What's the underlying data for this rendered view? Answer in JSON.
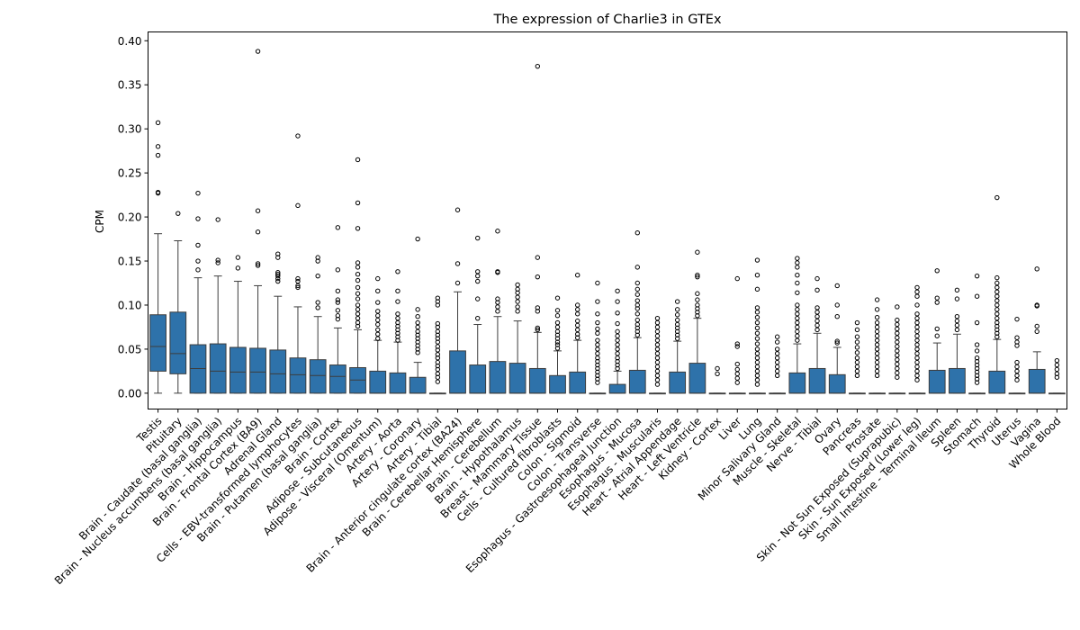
{
  "chart_data": {
    "type": "box",
    "title": "The expression of Charlie3 in GTEx",
    "xlabel": "",
    "ylabel": "CPM",
    "ylim": [
      -0.018,
      0.41
    ],
    "yticks": [
      0.0,
      0.05,
      0.1,
      0.15,
      0.2,
      0.25,
      0.3,
      0.35,
      0.4
    ],
    "ytick_labels": [
      "0.00",
      "0.05",
      "0.10",
      "0.15",
      "0.20",
      "0.25",
      "0.30",
      "0.35",
      "0.40"
    ],
    "box_color": "#2e72aa",
    "grid": false,
    "categories": [
      {
        "name": "Testis",
        "q1": 0.025,
        "median": 0.053,
        "q3": 0.089,
        "whisker_low": 0.0,
        "whisker_high": 0.181,
        "outliers": [
          0.227,
          0.228,
          0.27,
          0.28,
          0.307
        ]
      },
      {
        "name": "Pituitary",
        "q1": 0.022,
        "median": 0.045,
        "q3": 0.092,
        "whisker_low": 0.0,
        "whisker_high": 0.173,
        "outliers": [
          0.204
        ]
      },
      {
        "name": "Brain - Caudate (basal ganglia)",
        "q1": 0.0,
        "median": 0.028,
        "q3": 0.055,
        "whisker_low": 0.0,
        "whisker_high": 0.131,
        "outliers": [
          0.14,
          0.15,
          0.168,
          0.198,
          0.227
        ]
      },
      {
        "name": "Brain - Nucleus accumbens (basal ganglia)",
        "q1": 0.0,
        "median": 0.025,
        "q3": 0.056,
        "whisker_low": 0.0,
        "whisker_high": 0.133,
        "outliers": [
          0.148,
          0.151,
          0.197
        ]
      },
      {
        "name": "Brain - Hippocampus",
        "q1": 0.0,
        "median": 0.024,
        "q3": 0.052,
        "whisker_low": 0.0,
        "whisker_high": 0.127,
        "outliers": [
          0.142,
          0.154
        ]
      },
      {
        "name": "Brain - Frontal Cortex (BA9)",
        "q1": 0.0,
        "median": 0.024,
        "q3": 0.051,
        "whisker_low": 0.0,
        "whisker_high": 0.122,
        "outliers": [
          0.145,
          0.147,
          0.183,
          0.207,
          0.388
        ]
      },
      {
        "name": "Adrenal Gland",
        "q1": 0.0,
        "median": 0.022,
        "q3": 0.049,
        "whisker_low": 0.0,
        "whisker_high": 0.11,
        "outliers": [
          0.127,
          0.13,
          0.133,
          0.135,
          0.137,
          0.154,
          0.158
        ]
      },
      {
        "name": "Cells - EBV-transformed lymphocytes",
        "q1": 0.0,
        "median": 0.021,
        "q3": 0.04,
        "whisker_low": 0.0,
        "whisker_high": 0.098,
        "outliers": [
          0.12,
          0.122,
          0.127,
          0.13,
          0.213,
          0.292
        ]
      },
      {
        "name": "Brain - Putamen (basal ganglia)",
        "q1": 0.0,
        "median": 0.02,
        "q3": 0.038,
        "whisker_low": 0.0,
        "whisker_high": 0.087,
        "outliers": [
          0.097,
          0.103,
          0.133,
          0.15,
          0.154
        ]
      },
      {
        "name": "Brain - Cortex",
        "q1": 0.0,
        "median": 0.019,
        "q3": 0.032,
        "whisker_low": 0.0,
        "whisker_high": 0.074,
        "outliers": [
          0.084,
          0.088,
          0.094,
          0.103,
          0.106,
          0.116,
          0.14,
          0.188
        ]
      },
      {
        "name": "Adipose - Subcutaneous",
        "q1": 0.0,
        "median": 0.015,
        "q3": 0.029,
        "whisker_low": 0.0,
        "whisker_high": 0.072,
        "outliers": [
          0.076,
          0.08,
          0.085,
          0.09,
          0.095,
          0.1,
          0.107,
          0.113,
          0.12,
          0.128,
          0.135,
          0.143,
          0.148,
          0.187,
          0.216,
          0.265
        ]
      },
      {
        "name": "Adipose - Visceral (Omentum)",
        "q1": 0.0,
        "median": 0.0,
        "q3": 0.025,
        "whisker_low": 0.0,
        "whisker_high": 0.06,
        "outliers": [
          0.062,
          0.067,
          0.072,
          0.078,
          0.083,
          0.088,
          0.093,
          0.103,
          0.116,
          0.13
        ]
      },
      {
        "name": "Artery - Aorta",
        "q1": 0.0,
        "median": 0.0,
        "q3": 0.023,
        "whisker_low": 0.0,
        "whisker_high": 0.058,
        "outliers": [
          0.06,
          0.064,
          0.068,
          0.072,
          0.076,
          0.08,
          0.085,
          0.09,
          0.104,
          0.116,
          0.138
        ]
      },
      {
        "name": "Artery - Coronary",
        "q1": 0.0,
        "median": 0.0,
        "q3": 0.018,
        "whisker_low": 0.0,
        "whisker_high": 0.035,
        "outliers": [
          0.046,
          0.05,
          0.054,
          0.058,
          0.062,
          0.066,
          0.07,
          0.075,
          0.08,
          0.087,
          0.095,
          0.175
        ]
      },
      {
        "name": "Artery - Tibial",
        "q1": 0.0,
        "median": 0.0,
        "q3": 0.0,
        "whisker_low": 0.0,
        "whisker_high": 0.0,
        "outliers": [
          0.013,
          0.018,
          0.022,
          0.027,
          0.031,
          0.035,
          0.04,
          0.044,
          0.049,
          0.053,
          0.058,
          0.062,
          0.066,
          0.07,
          0.075,
          0.079,
          0.1,
          0.104,
          0.108
        ]
      },
      {
        "name": "Brain - Anterior cingulate cortex (BA24)",
        "q1": 0.0,
        "median": 0.0,
        "q3": 0.048,
        "whisker_low": 0.0,
        "whisker_high": 0.115,
        "outliers": [
          0.125,
          0.147,
          0.208
        ]
      },
      {
        "name": "Brain - Cerebellar Hemisphere",
        "q1": 0.0,
        "median": 0.0,
        "q3": 0.032,
        "whisker_low": 0.0,
        "whisker_high": 0.078,
        "outliers": [
          0.085,
          0.107,
          0.127,
          0.133,
          0.138,
          0.176
        ]
      },
      {
        "name": "Brain - Cerebellum",
        "q1": 0.0,
        "median": 0.0,
        "q3": 0.036,
        "whisker_low": 0.0,
        "whisker_high": 0.087,
        "outliers": [
          0.093,
          0.098,
          0.103,
          0.107,
          0.137,
          0.138,
          0.184
        ]
      },
      {
        "name": "Brain - Hypothalamus",
        "q1": 0.0,
        "median": 0.0,
        "q3": 0.034,
        "whisker_low": 0.0,
        "whisker_high": 0.082,
        "outliers": [
          0.093,
          0.098,
          0.104,
          0.109,
          0.114,
          0.118,
          0.123
        ]
      },
      {
        "name": "Breast - Mammary Tissue",
        "q1": 0.0,
        "median": 0.0,
        "q3": 0.028,
        "whisker_low": 0.0,
        "whisker_high": 0.069,
        "outliers": [
          0.072,
          0.074,
          0.093,
          0.097,
          0.132,
          0.154,
          0.371
        ]
      },
      {
        "name": "Cells - Cultured fibroblasts",
        "q1": 0.0,
        "median": 0.0,
        "q3": 0.02,
        "whisker_low": 0.0,
        "whisker_high": 0.048,
        "outliers": [
          0.051,
          0.055,
          0.058,
          0.062,
          0.066,
          0.07,
          0.075,
          0.08,
          0.088,
          0.094,
          0.108
        ]
      },
      {
        "name": "Colon - Sigmoid",
        "q1": 0.0,
        "median": 0.0,
        "q3": 0.024,
        "whisker_low": 0.0,
        "whisker_high": 0.06,
        "outliers": [
          0.063,
          0.067,
          0.072,
          0.077,
          0.082,
          0.09,
          0.095,
          0.1,
          0.134
        ]
      },
      {
        "name": "Colon - Transverse",
        "q1": 0.0,
        "median": 0.0,
        "q3": 0.0,
        "whisker_low": 0.0,
        "whisker_high": 0.0,
        "outliers": [
          0.012,
          0.016,
          0.02,
          0.024,
          0.028,
          0.032,
          0.036,
          0.04,
          0.045,
          0.05,
          0.055,
          0.06,
          0.068,
          0.073,
          0.08,
          0.09,
          0.104,
          0.125
        ]
      },
      {
        "name": "Esophagus - Gastroesophageal Junction",
        "q1": 0.0,
        "median": 0.0,
        "q3": 0.01,
        "whisker_low": 0.0,
        "whisker_high": 0.025,
        "outliers": [
          0.028,
          0.032,
          0.036,
          0.04,
          0.045,
          0.05,
          0.055,
          0.06,
          0.065,
          0.07,
          0.079,
          0.091,
          0.104,
          0.116
        ]
      },
      {
        "name": "Esophagus - Mucosa",
        "q1": 0.0,
        "median": 0.0,
        "q3": 0.026,
        "whisker_low": 0.0,
        "whisker_high": 0.063,
        "outliers": [
          0.066,
          0.07,
          0.074,
          0.078,
          0.083,
          0.09,
          0.096,
          0.1,
          0.105,
          0.112,
          0.118,
          0.125,
          0.143,
          0.182
        ]
      },
      {
        "name": "Esophagus - Muscularis",
        "q1": 0.0,
        "median": 0.0,
        "q3": 0.0,
        "whisker_low": 0.0,
        "whisker_high": 0.0,
        "outliers": [
          0.01,
          0.015,
          0.02,
          0.025,
          0.03,
          0.035,
          0.04,
          0.045,
          0.05,
          0.055,
          0.06,
          0.065,
          0.07,
          0.075,
          0.08,
          0.085
        ]
      },
      {
        "name": "Heart - Atrial Appendage",
        "q1": 0.0,
        "median": 0.0,
        "q3": 0.024,
        "whisker_low": 0.0,
        "whisker_high": 0.059,
        "outliers": [
          0.062,
          0.066,
          0.07,
          0.074,
          0.078,
          0.083,
          0.089,
          0.095,
          0.104
        ]
      },
      {
        "name": "Heart - Left Ventricle",
        "q1": 0.0,
        "median": 0.0,
        "q3": 0.034,
        "whisker_low": 0.0,
        "whisker_high": 0.085,
        "outliers": [
          0.088,
          0.092,
          0.096,
          0.1,
          0.106,
          0.113,
          0.132,
          0.134,
          0.16
        ]
      },
      {
        "name": "Kidney - Cortex",
        "q1": 0.0,
        "median": 0.0,
        "q3": 0.0,
        "whisker_low": 0.0,
        "whisker_high": 0.0,
        "outliers": [
          0.022,
          0.028
        ]
      },
      {
        "name": "Liver",
        "q1": 0.0,
        "median": 0.0,
        "q3": 0.0,
        "whisker_low": 0.0,
        "whisker_high": 0.0,
        "outliers": [
          0.012,
          0.017,
          0.022,
          0.027,
          0.033,
          0.053,
          0.056,
          0.13
        ]
      },
      {
        "name": "Lung",
        "q1": 0.0,
        "median": 0.0,
        "q3": 0.0,
        "whisker_low": 0.0,
        "whisker_high": 0.0,
        "outliers": [
          0.01,
          0.015,
          0.02,
          0.025,
          0.03,
          0.035,
          0.04,
          0.045,
          0.05,
          0.056,
          0.062,
          0.068,
          0.074,
          0.08,
          0.086,
          0.092,
          0.097,
          0.118,
          0.134,
          0.151
        ]
      },
      {
        "name": "Minor Salivary Gland",
        "q1": 0.0,
        "median": 0.0,
        "q3": 0.0,
        "whisker_low": 0.0,
        "whisker_high": 0.0,
        "outliers": [
          0.02,
          0.025,
          0.03,
          0.035,
          0.04,
          0.045,
          0.05,
          0.058,
          0.064
        ]
      },
      {
        "name": "Muscle - Skeletal",
        "q1": 0.0,
        "median": 0.0,
        "q3": 0.023,
        "whisker_low": 0.0,
        "whisker_high": 0.056,
        "outliers": [
          0.06,
          0.065,
          0.07,
          0.075,
          0.08,
          0.085,
          0.09,
          0.095,
          0.1,
          0.114,
          0.125,
          0.134,
          0.143,
          0.148,
          0.153
        ]
      },
      {
        "name": "Nerve - Tibial",
        "q1": 0.0,
        "median": 0.0,
        "q3": 0.028,
        "whisker_low": 0.0,
        "whisker_high": 0.068,
        "outliers": [
          0.072,
          0.077,
          0.082,
          0.087,
          0.092,
          0.097,
          0.117,
          0.13
        ]
      },
      {
        "name": "Ovary",
        "q1": 0.0,
        "median": 0.0,
        "q3": 0.021,
        "whisker_low": 0.0,
        "whisker_high": 0.052,
        "outliers": [
          0.057,
          0.059,
          0.087,
          0.1,
          0.122
        ]
      },
      {
        "name": "Pancreas",
        "q1": 0.0,
        "median": 0.0,
        "q3": 0.0,
        "whisker_low": 0.0,
        "whisker_high": 0.0,
        "outliers": [
          0.02,
          0.025,
          0.03,
          0.035,
          0.04,
          0.046,
          0.052,
          0.058,
          0.064,
          0.072,
          0.08
        ]
      },
      {
        "name": "Prostate",
        "q1": 0.0,
        "median": 0.0,
        "q3": 0.0,
        "whisker_low": 0.0,
        "whisker_high": 0.0,
        "outliers": [
          0.02,
          0.025,
          0.03,
          0.035,
          0.04,
          0.045,
          0.05,
          0.055,
          0.06,
          0.065,
          0.07,
          0.075,
          0.08,
          0.086,
          0.095,
          0.106
        ]
      },
      {
        "name": "Skin - Not Sun Exposed (Suprapubic)",
        "q1": 0.0,
        "median": 0.0,
        "q3": 0.0,
        "whisker_low": 0.0,
        "whisker_high": 0.0,
        "outliers": [
          0.018,
          0.023,
          0.028,
          0.033,
          0.038,
          0.043,
          0.048,
          0.053,
          0.058,
          0.063,
          0.068,
          0.073,
          0.078,
          0.083,
          0.098
        ]
      },
      {
        "name": "Skin - Sun Exposed (Lower leg)",
        "q1": 0.0,
        "median": 0.0,
        "q3": 0.0,
        "whisker_low": 0.0,
        "whisker_high": 0.0,
        "outliers": [
          0.015,
          0.02,
          0.025,
          0.03,
          0.035,
          0.04,
          0.045,
          0.05,
          0.055,
          0.06,
          0.065,
          0.07,
          0.075,
          0.08,
          0.085,
          0.09,
          0.1,
          0.11,
          0.115,
          0.12
        ]
      },
      {
        "name": "Small Intestine - Terminal Ileum",
        "q1": 0.0,
        "median": 0.0,
        "q3": 0.026,
        "whisker_low": 0.0,
        "whisker_high": 0.057,
        "outliers": [
          0.065,
          0.073,
          0.103,
          0.108,
          0.139
        ]
      },
      {
        "name": "Spleen",
        "q1": 0.0,
        "median": 0.0,
        "q3": 0.028,
        "whisker_low": 0.0,
        "whisker_high": 0.067,
        "outliers": [
          0.072,
          0.077,
          0.082,
          0.087,
          0.107,
          0.117
        ]
      },
      {
        "name": "Stomach",
        "q1": 0.0,
        "median": 0.0,
        "q3": 0.0,
        "whisker_low": 0.0,
        "whisker_high": 0.0,
        "outliers": [
          0.012,
          0.016,
          0.02,
          0.024,
          0.028,
          0.032,
          0.036,
          0.04,
          0.048,
          0.055,
          0.08,
          0.11,
          0.133
        ]
      },
      {
        "name": "Thyroid",
        "q1": 0.0,
        "median": 0.0,
        "q3": 0.025,
        "whisker_low": 0.0,
        "whisker_high": 0.061,
        "outliers": [
          0.064,
          0.068,
          0.072,
          0.076,
          0.08,
          0.085,
          0.09,
          0.095,
          0.1,
          0.105,
          0.11,
          0.115,
          0.12,
          0.125,
          0.131,
          0.222
        ]
      },
      {
        "name": "Uterus",
        "q1": 0.0,
        "median": 0.0,
        "q3": 0.0,
        "whisker_low": 0.0,
        "whisker_high": 0.0,
        "outliers": [
          0.015,
          0.02,
          0.025,
          0.03,
          0.035,
          0.054,
          0.058,
          0.063,
          0.084
        ]
      },
      {
        "name": "Vagina",
        "q1": 0.0,
        "median": 0.0,
        "q3": 0.027,
        "whisker_low": 0.0,
        "whisker_high": 0.047,
        "outliers": [
          0.07,
          0.076,
          0.099,
          0.1,
          0.141
        ]
      },
      {
        "name": "Whole Blood",
        "q1": 0.0,
        "median": 0.0,
        "q3": 0.0,
        "whisker_low": 0.0,
        "whisker_high": 0.0,
        "outliers": [
          0.018,
          0.022,
          0.027,
          0.032,
          0.037
        ]
      }
    ]
  }
}
